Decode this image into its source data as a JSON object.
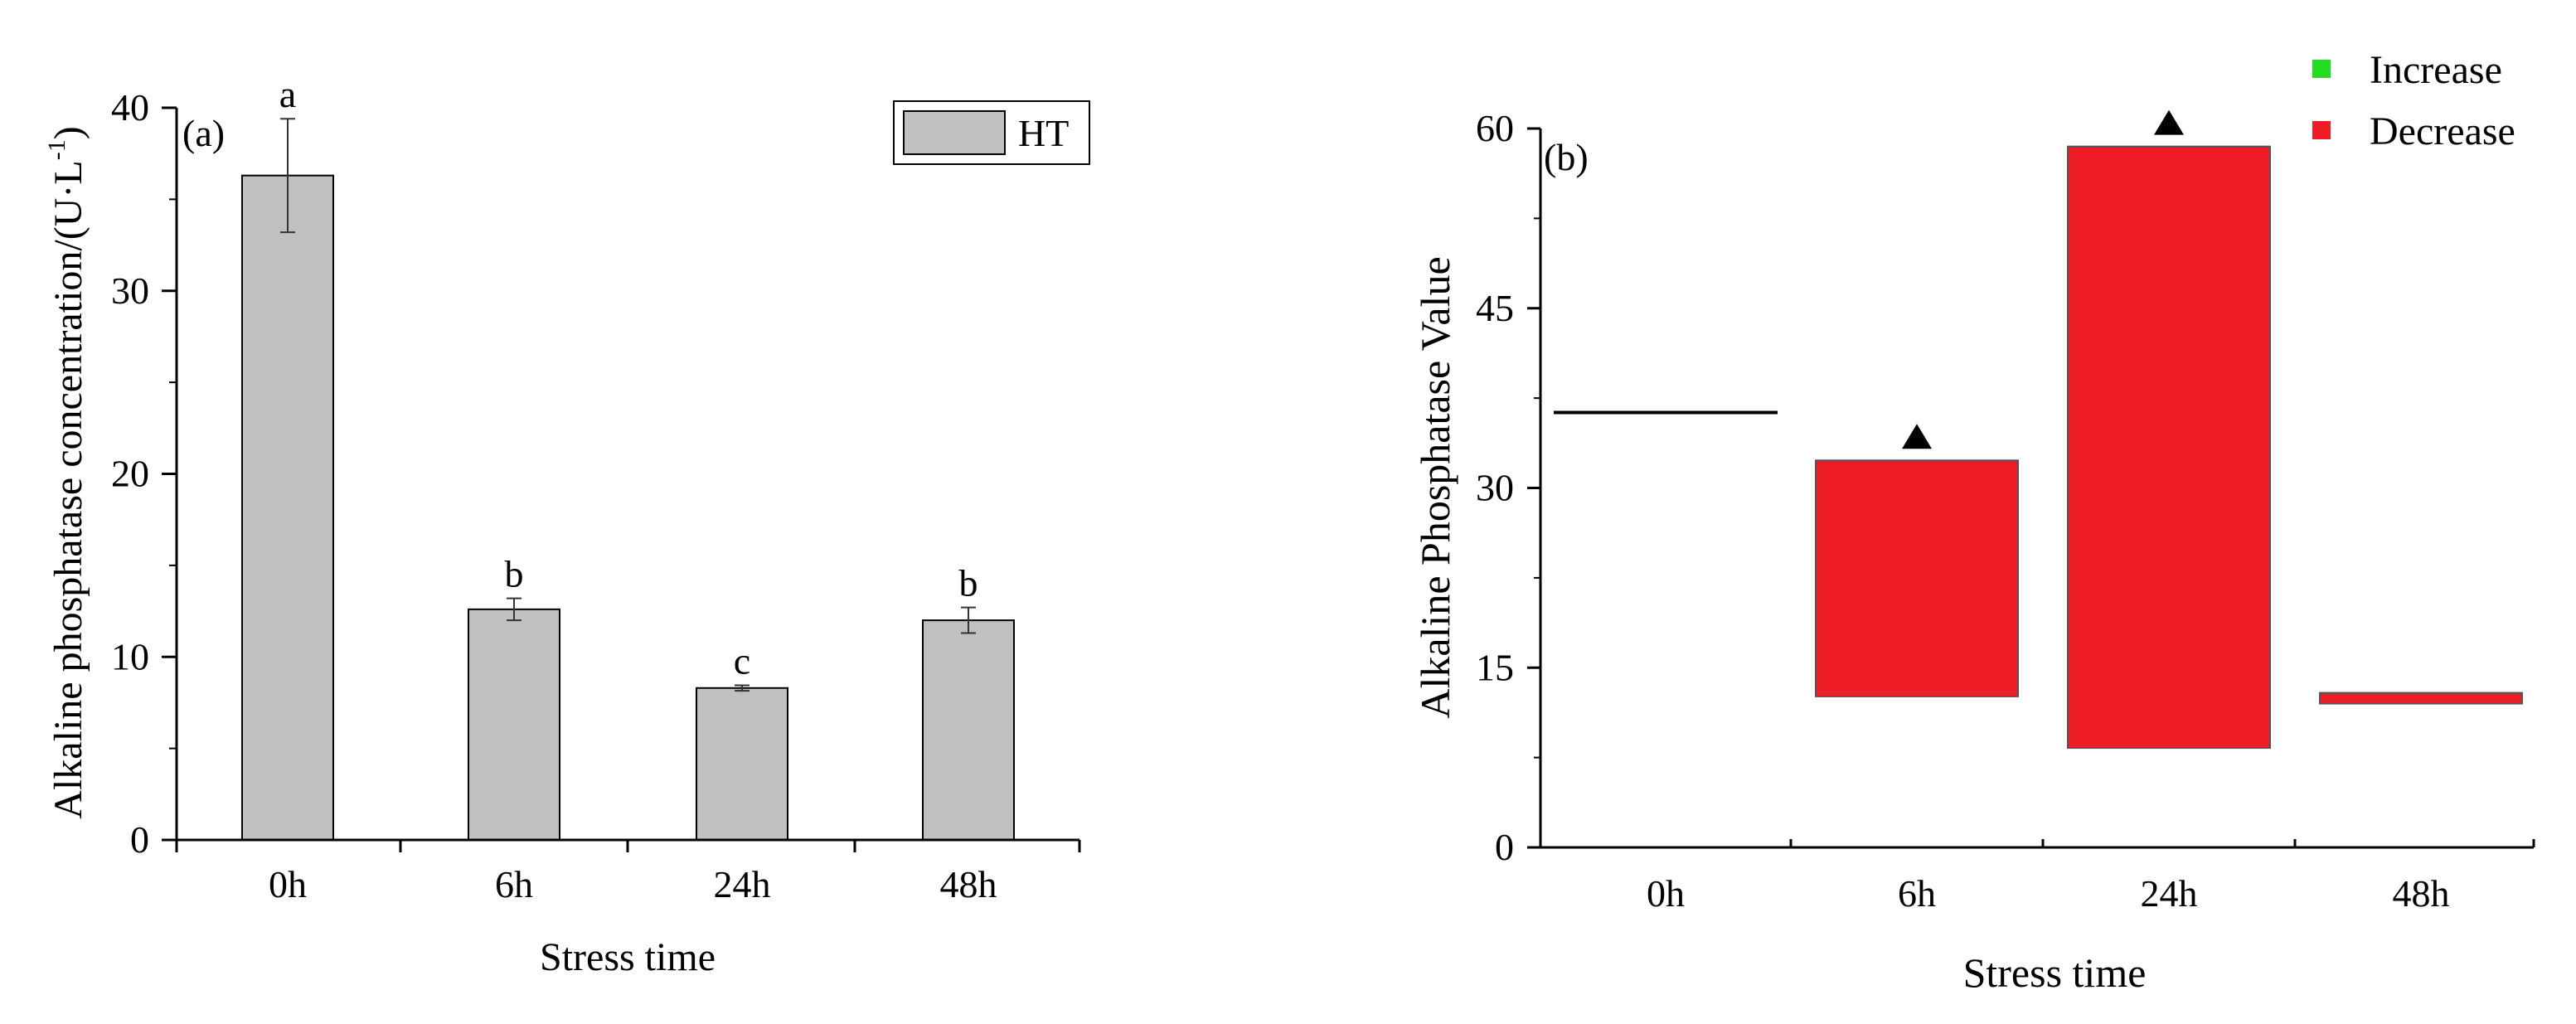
{
  "chart_data": [
    {
      "type": "bar",
      "panel_label": "(a)",
      "categories": [
        "0h",
        "6h",
        "24h",
        "48h"
      ],
      "series": [
        {
          "name": "HT",
          "values": [
            36.3,
            12.6,
            8.3,
            12.0
          ],
          "error": [
            3.1,
            0.6,
            0.15,
            0.7
          ],
          "significance": [
            "a",
            "b",
            "c",
            "b"
          ],
          "color": "#c0c0c0"
        }
      ],
      "xlabel": "Stress time",
      "ylabel_main": "Alkaline phosphatase concentration/(U·L",
      "ylabel_sup": "-1",
      "ylabel_end": ")",
      "ylim": [
        0,
        40
      ],
      "yticks": [
        "0",
        "10",
        "20",
        "30",
        "40"
      ],
      "legend_position": "top-right",
      "grid": false
    },
    {
      "type": "waterfall",
      "panel_label": "(b)",
      "categories": [
        "0h",
        "6h",
        "24h",
        "48h"
      ],
      "start_value": 36.3,
      "steps": [
        {
          "category": "0h",
          "from": 36.3,
          "to": 36.3,
          "kind": "total",
          "marker": false
        },
        {
          "category": "6h",
          "from": 32.3,
          "to": 12.6,
          "kind": "decrease",
          "marker": true
        },
        {
          "category": "24h",
          "from": 58.5,
          "to": 8.3,
          "kind": "decrease",
          "marker": true
        },
        {
          "category": "48h",
          "from": 12.9,
          "to": 12.0,
          "kind": "decrease",
          "marker": false
        }
      ],
      "xlabel": "Stress time",
      "ylabel": "Alkaline Phosphatase Value",
      "ylim": [
        0,
        60
      ],
      "yticks": [
        "0",
        "15",
        "30",
        "45",
        "60"
      ],
      "legend": [
        {
          "label": "Increase",
          "color": "#22dd22"
        },
        {
          "label": "Decrease",
          "color": "#ee1c25"
        }
      ],
      "legend_position": "top-right",
      "grid": false
    }
  ]
}
